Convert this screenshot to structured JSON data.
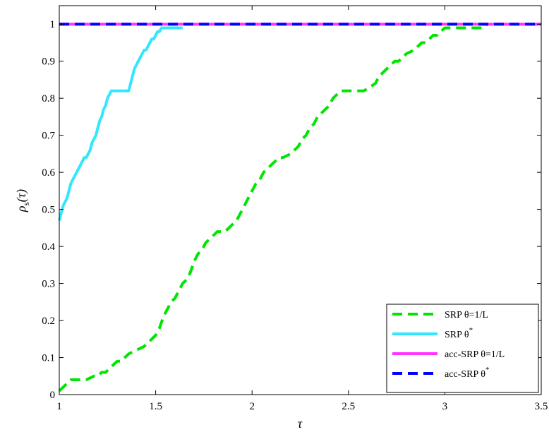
{
  "chart_data": {
    "type": "line",
    "title": "",
    "xlabel": "τ",
    "ylabel": "ρ",
    "ylabel_sub": "s",
    "ylabel_arg": "(τ)",
    "xlim": [
      1,
      3.5
    ],
    "ylim": [
      0,
      1.05
    ],
    "xticks": [
      1,
      1.5,
      2,
      2.5,
      3,
      3.5
    ],
    "xtick_labels": [
      "1",
      "1.5",
      "2",
      "2.5",
      "3",
      "3.5"
    ],
    "yticks": [
      0,
      0.1,
      0.2,
      0.3,
      0.4,
      0.5,
      0.6,
      0.7,
      0.8,
      0.9,
      1
    ],
    "ytick_labels": [
      "0",
      "0.1",
      "0.2",
      "0.3",
      "0.4",
      "0.5",
      "0.6",
      "0.7",
      "0.8",
      "0.9",
      "1"
    ],
    "grid": false,
    "legend_position": "bottom-right",
    "series": [
      {
        "name": "SRP θ=1/L",
        "color": "#00e600",
        "dash": "dashed",
        "x": [
          1.0,
          1.02,
          1.04,
          1.06,
          1.08,
          1.1,
          1.14,
          1.18,
          1.2,
          1.22,
          1.24,
          1.26,
          1.28,
          1.3,
          1.32,
          1.36,
          1.4,
          1.44,
          1.48,
          1.5,
          1.52,
          1.54,
          1.56,
          1.58,
          1.6,
          1.62,
          1.64,
          1.66,
          1.68,
          1.7,
          1.72,
          1.74,
          1.76,
          1.78,
          1.8,
          1.82,
          1.86,
          1.9,
          1.92,
          1.94,
          1.96,
          1.98,
          2.0,
          2.02,
          2.04,
          2.06,
          2.08,
          2.1,
          2.12,
          2.14,
          2.16,
          2.2,
          2.24,
          2.26,
          2.28,
          2.3,
          2.32,
          2.34,
          2.36,
          2.38,
          2.4,
          2.42,
          2.44,
          2.46,
          2.48,
          2.5,
          2.52,
          2.54,
          2.56,
          2.58,
          2.64,
          2.66,
          2.68,
          2.7,
          2.72,
          2.74,
          2.76,
          2.8,
          2.84,
          2.86,
          2.88,
          2.9,
          2.92,
          2.94,
          2.96,
          2.98,
          3.0,
          3.02,
          3.04,
          3.06,
          3.08,
          3.1,
          3.2,
          3.22
        ],
        "y": [
          0.01,
          0.02,
          0.03,
          0.04,
          0.04,
          0.04,
          0.04,
          0.05,
          0.05,
          0.06,
          0.06,
          0.07,
          0.08,
          0.09,
          0.09,
          0.11,
          0.12,
          0.13,
          0.15,
          0.16,
          0.18,
          0.21,
          0.23,
          0.25,
          0.26,
          0.28,
          0.3,
          0.31,
          0.33,
          0.36,
          0.38,
          0.39,
          0.41,
          0.42,
          0.43,
          0.44,
          0.44,
          0.46,
          0.47,
          0.49,
          0.51,
          0.53,
          0.55,
          0.57,
          0.58,
          0.6,
          0.61,
          0.62,
          0.63,
          0.64,
          0.64,
          0.65,
          0.67,
          0.69,
          0.7,
          0.72,
          0.73,
          0.75,
          0.76,
          0.77,
          0.78,
          0.8,
          0.81,
          0.82,
          0.82,
          0.82,
          0.82,
          0.82,
          0.82,
          0.82,
          0.84,
          0.86,
          0.87,
          0.88,
          0.89,
          0.9,
          0.9,
          0.92,
          0.93,
          0.94,
          0.95,
          0.95,
          0.96,
          0.97,
          0.97,
          0.98,
          0.99,
          0.99,
          0.99,
          0.99,
          0.99,
          0.99,
          0.99,
          1.0
        ]
      },
      {
        "name": "SRP θ",
        "name_sup": "*",
        "color": "#33e6ff",
        "dash": "solid",
        "x": [
          1.0,
          1.01,
          1.02,
          1.03,
          1.04,
          1.05,
          1.06,
          1.07,
          1.08,
          1.09,
          1.1,
          1.11,
          1.12,
          1.13,
          1.14,
          1.15,
          1.16,
          1.17,
          1.18,
          1.19,
          1.2,
          1.21,
          1.22,
          1.23,
          1.24,
          1.25,
          1.26,
          1.27,
          1.28,
          1.3,
          1.32,
          1.34,
          1.36,
          1.37,
          1.38,
          1.39,
          1.4,
          1.41,
          1.42,
          1.43,
          1.44,
          1.45,
          1.46,
          1.47,
          1.48,
          1.49,
          1.5,
          1.51,
          1.52,
          1.53,
          1.54,
          1.55,
          1.57,
          1.6,
          1.64
        ],
        "y": [
          0.47,
          0.49,
          0.51,
          0.52,
          0.53,
          0.55,
          0.57,
          0.58,
          0.59,
          0.6,
          0.61,
          0.62,
          0.63,
          0.64,
          0.64,
          0.65,
          0.66,
          0.68,
          0.69,
          0.7,
          0.72,
          0.74,
          0.75,
          0.77,
          0.78,
          0.8,
          0.81,
          0.82,
          0.82,
          0.82,
          0.82,
          0.82,
          0.82,
          0.84,
          0.86,
          0.88,
          0.89,
          0.9,
          0.91,
          0.92,
          0.93,
          0.93,
          0.94,
          0.95,
          0.96,
          0.96,
          0.97,
          0.98,
          0.98,
          0.99,
          0.99,
          0.99,
          0.99,
          0.99,
          0.99
        ]
      },
      {
        "name": "acc-SRP θ=1/L",
        "color": "#ff33ff",
        "dash": "solid",
        "x": [
          1.0,
          3.5
        ],
        "y": [
          1.0,
          1.0
        ]
      },
      {
        "name": "acc-SRP θ",
        "name_sup": "*",
        "color": "#0000ff",
        "dash": "dashed",
        "x": [
          1.0,
          3.5
        ],
        "y": [
          1.0,
          1.0
        ]
      }
    ]
  }
}
